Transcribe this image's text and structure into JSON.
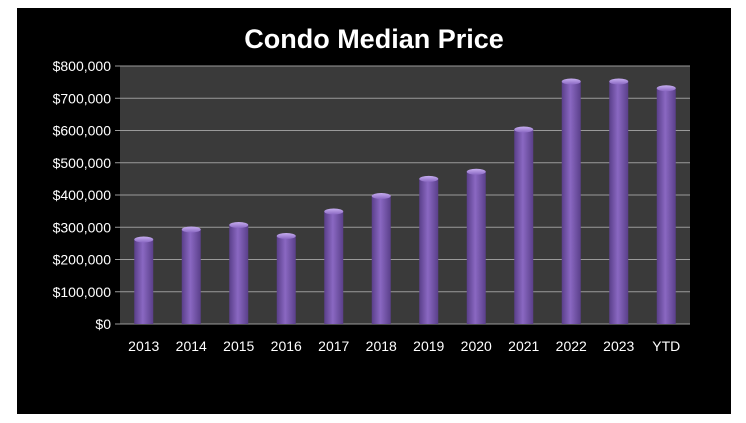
{
  "chart_data": {
    "type": "bar",
    "title": "Condo Median Price",
    "xlabel": "",
    "ylabel": "",
    "categories": [
      "2013",
      "2014",
      "2015",
      "2016",
      "2017",
      "2018",
      "2019",
      "2020",
      "2021",
      "2022",
      "2023",
      "YTD"
    ],
    "values": [
      262000,
      293000,
      307000,
      273000,
      349000,
      397000,
      450000,
      472000,
      603000,
      752000,
      752000,
      731000
    ],
    "ylim": [
      0,
      800000
    ],
    "yticks": [
      0,
      100000,
      200000,
      300000,
      400000,
      500000,
      600000,
      700000,
      800000
    ],
    "ytick_labels": [
      "$0",
      "$100,000",
      "$200,000",
      "$300,000",
      "$400,000",
      "$500,000",
      "$600,000",
      "$700,000",
      "$800,000"
    ],
    "grid": true,
    "legend": "none",
    "colors": {
      "background": "#000000",
      "plot_area": "#3a3a3a",
      "bar": "#8a68c2",
      "bar_highlight": "#c7aef0",
      "bar_shadow": "#5a3f8a",
      "gridline": "#9a9a9a",
      "text": "#ffffff"
    }
  }
}
